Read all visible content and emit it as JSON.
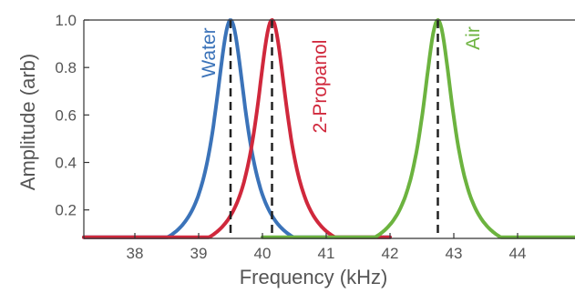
{
  "chart_data": {
    "type": "line",
    "title": "",
    "xlabel": "Frequency (kHz)",
    "ylabel": "Amplitude (arb)",
    "xlim": [
      37.2,
      44.9
    ],
    "ylim": [
      0.08,
      1.0
    ],
    "x_ticks": [
      "38",
      "39",
      "40",
      "41",
      "42",
      "43",
      "44"
    ],
    "y_ticks": [
      "0.2",
      "0.4",
      "0.6",
      "0.8",
      "1.0"
    ],
    "grid": false,
    "legend": "none",
    "series": [
      {
        "name": "Water",
        "color": "#3b73b9",
        "x_range": [
          37.2,
          42.0
        ],
        "x": [
          37.2,
          37.6,
          38.0,
          38.4,
          38.8,
          39.0,
          39.2,
          39.4,
          39.5,
          39.6,
          39.8,
          40.0,
          40.2,
          40.6,
          41.0,
          41.5,
          42.0
        ],
        "y": [
          0.09,
          0.11,
          0.14,
          0.19,
          0.29,
          0.38,
          0.53,
          0.85,
          1.0,
          0.85,
          0.53,
          0.38,
          0.29,
          0.19,
          0.14,
          0.11,
          0.09
        ]
      },
      {
        "name": "2-Propanol",
        "color": "#d0283c",
        "x_range": [
          37.2,
          42.0
        ],
        "x": [
          37.2,
          37.8,
          38.4,
          38.9,
          39.3,
          39.6,
          39.8,
          40.0,
          40.1,
          40.2,
          40.4,
          40.6,
          40.9,
          41.3,
          41.8,
          42.0
        ],
        "y": [
          0.08,
          0.1,
          0.13,
          0.19,
          0.28,
          0.4,
          0.55,
          0.85,
          1.0,
          0.85,
          0.55,
          0.4,
          0.27,
          0.18,
          0.13,
          0.12
        ]
      },
      {
        "name": "Air",
        "color": "#6cb33f",
        "x_range": [
          40.0,
          44.9
        ],
        "x": [
          40.0,
          40.6,
          41.2,
          41.7,
          42.1,
          42.4,
          42.6,
          42.75,
          42.9,
          43.1,
          43.4,
          43.8,
          44.3,
          44.9
        ],
        "y": [
          0.09,
          0.11,
          0.15,
          0.23,
          0.36,
          0.55,
          0.8,
          1.0,
          0.8,
          0.55,
          0.33,
          0.21,
          0.15,
          0.12
        ]
      }
    ],
    "peak_markers": [
      {
        "series": "Water",
        "x": 39.5
      },
      {
        "series": "2-Propanol",
        "x": 40.15
      },
      {
        "series": "Air",
        "x": 42.75
      }
    ]
  }
}
